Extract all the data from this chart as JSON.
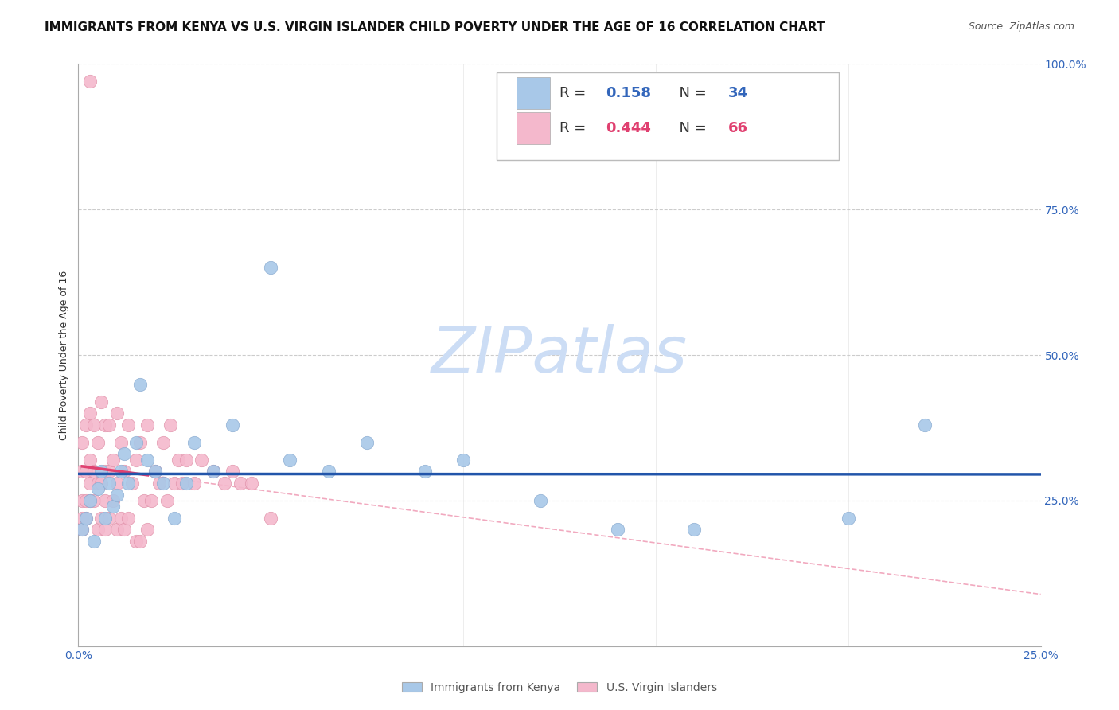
{
  "title": "IMMIGRANTS FROM KENYA VS U.S. VIRGIN ISLANDER CHILD POVERTY UNDER THE AGE OF 16 CORRELATION CHART",
  "source": "Source: ZipAtlas.com",
  "ylabel": "Child Poverty Under the Age of 16",
  "xlim": [
    0.0,
    0.25
  ],
  "ylim": [
    0.0,
    1.0
  ],
  "series1_label": "Immigrants from Kenya",
  "series1_color": "#a8c8e8",
  "series1_line_color": "#2255aa",
  "series1_R": 0.158,
  "series1_N": 34,
  "series2_label": "U.S. Virgin Islanders",
  "series2_color": "#f4b8cc",
  "series2_line_color": "#e04070",
  "series2_dash_color": "#f0a0b8",
  "series2_R": 0.444,
  "series2_N": 66,
  "watermark": "ZIPatlas",
  "watermark_color": "#ccddf5",
  "background_color": "#ffffff",
  "grid_color": "#cccccc",
  "title_fontsize": 11,
  "axis_label_fontsize": 9,
  "tick_fontsize": 10,
  "legend_fontsize": 13,
  "series1_x": [
    0.001,
    0.002,
    0.003,
    0.004,
    0.005,
    0.006,
    0.007,
    0.008,
    0.009,
    0.01,
    0.011,
    0.012,
    0.013,
    0.015,
    0.016,
    0.018,
    0.02,
    0.022,
    0.025,
    0.028,
    0.03,
    0.035,
    0.04,
    0.05,
    0.055,
    0.065,
    0.075,
    0.09,
    0.1,
    0.12,
    0.14,
    0.16,
    0.2,
    0.22
  ],
  "series1_y": [
    0.2,
    0.22,
    0.25,
    0.18,
    0.27,
    0.3,
    0.22,
    0.28,
    0.24,
    0.26,
    0.3,
    0.33,
    0.28,
    0.35,
    0.45,
    0.32,
    0.3,
    0.28,
    0.22,
    0.28,
    0.35,
    0.3,
    0.38,
    0.65,
    0.32,
    0.3,
    0.35,
    0.3,
    0.32,
    0.25,
    0.2,
    0.2,
    0.22,
    0.38
  ],
  "series2_x": [
    0.001,
    0.001,
    0.001,
    0.001,
    0.001,
    0.002,
    0.002,
    0.002,
    0.002,
    0.003,
    0.003,
    0.003,
    0.003,
    0.004,
    0.004,
    0.004,
    0.005,
    0.005,
    0.005,
    0.006,
    0.006,
    0.006,
    0.007,
    0.007,
    0.007,
    0.007,
    0.008,
    0.008,
    0.008,
    0.009,
    0.009,
    0.01,
    0.01,
    0.01,
    0.011,
    0.011,
    0.012,
    0.012,
    0.013,
    0.013,
    0.014,
    0.015,
    0.015,
    0.016,
    0.016,
    0.017,
    0.018,
    0.018,
    0.019,
    0.02,
    0.021,
    0.022,
    0.023,
    0.024,
    0.025,
    0.026,
    0.027,
    0.028,
    0.03,
    0.032,
    0.035,
    0.038,
    0.04,
    0.042,
    0.045,
    0.05
  ],
  "series2_y": [
    0.2,
    0.22,
    0.25,
    0.3,
    0.35,
    0.22,
    0.25,
    0.3,
    0.38,
    0.25,
    0.28,
    0.32,
    0.4,
    0.25,
    0.3,
    0.38,
    0.2,
    0.28,
    0.35,
    0.22,
    0.28,
    0.42,
    0.2,
    0.25,
    0.3,
    0.38,
    0.22,
    0.3,
    0.38,
    0.25,
    0.32,
    0.2,
    0.28,
    0.4,
    0.22,
    0.35,
    0.2,
    0.3,
    0.22,
    0.38,
    0.28,
    0.18,
    0.32,
    0.18,
    0.35,
    0.25,
    0.2,
    0.38,
    0.25,
    0.3,
    0.28,
    0.35,
    0.25,
    0.38,
    0.28,
    0.32,
    0.28,
    0.32,
    0.28,
    0.32,
    0.3,
    0.28,
    0.3,
    0.28,
    0.28,
    0.22
  ],
  "series2_x_outlier": [
    0.003
  ],
  "series2_y_outlier": [
    0.97
  ]
}
